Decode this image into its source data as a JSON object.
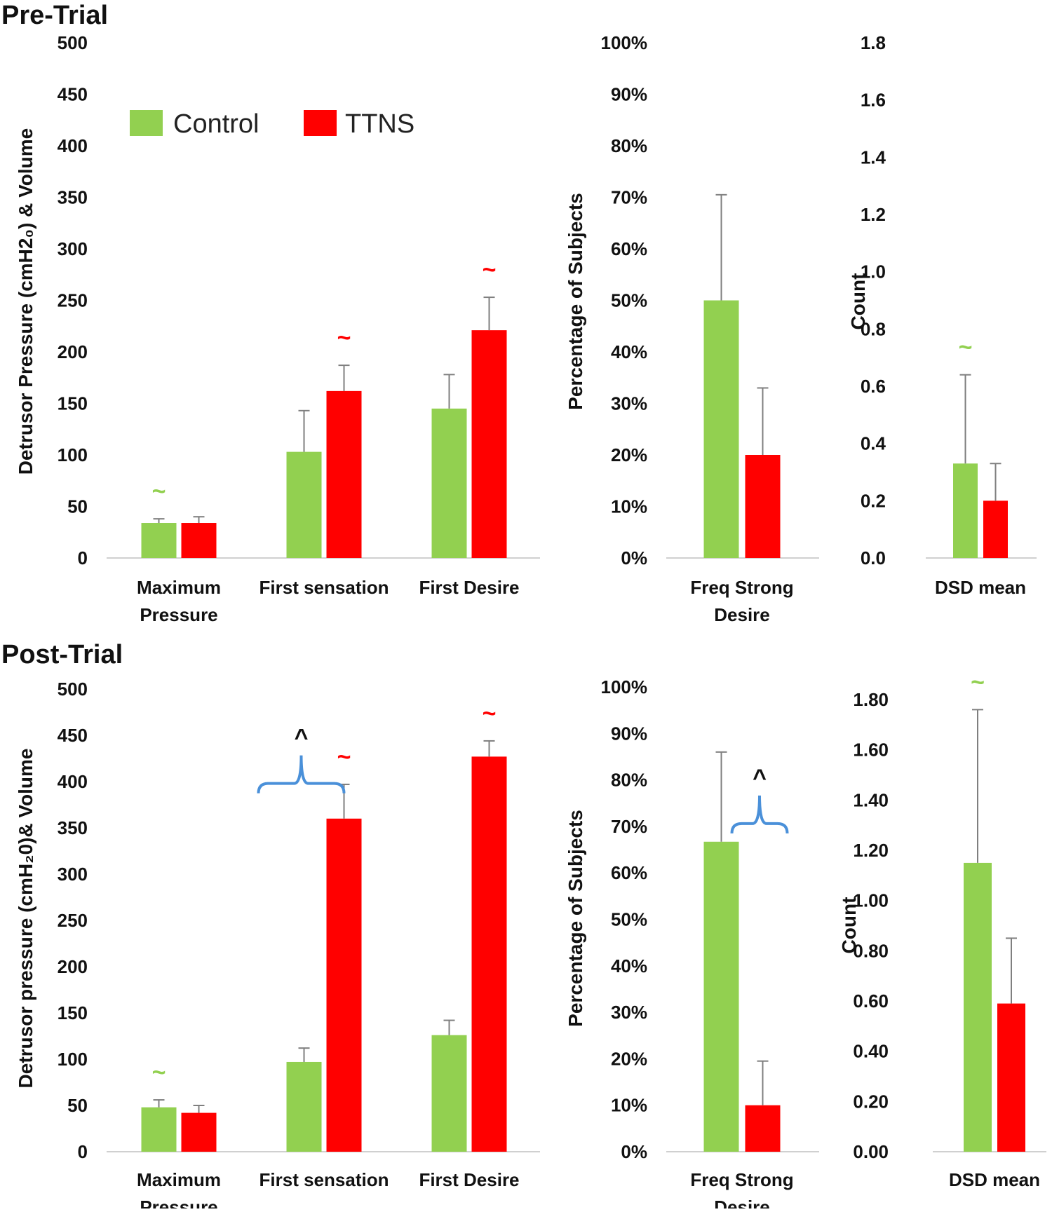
{
  "figure": {
    "panels": [
      {
        "title": "Pre-Trial"
      },
      {
        "title": "Post-Trial"
      }
    ],
    "legend": [
      {
        "label": "Control",
        "color": "#92d050"
      },
      {
        "label": "TTNS",
        "color": "#ff0000"
      }
    ],
    "colors": {
      "control": "#92d050",
      "ttns": "#ff0000",
      "bracket": "#4a90d9",
      "error": "#7f7f7f",
      "axis": "#d0d0d0"
    },
    "symbols": {
      "tilde": "~",
      "caret": "^"
    }
  },
  "chart_data": [
    {
      "id": "pre-main",
      "type": "bar",
      "panel": "Pre-Trial",
      "ylabel": "Detrusor Pressure (cmH2₀) & Volume",
      "ylim": [
        0,
        500
      ],
      "yticks": [
        0,
        50,
        100,
        150,
        200,
        250,
        300,
        350,
        400,
        450,
        500
      ],
      "ytick_labels": [
        "0",
        "50",
        "100",
        "150",
        "200",
        "250",
        "300",
        "350",
        "400",
        "450",
        "500"
      ],
      "categories": [
        [
          "Maximum",
          "Pressure"
        ],
        [
          "First sensation"
        ],
        [
          "First Desire"
        ]
      ],
      "series": [
        {
          "name": "Control",
          "values": [
            34,
            103,
            145
          ],
          "errors": [
            4,
            40,
            33
          ]
        },
        {
          "name": "TTNS",
          "values": [
            34,
            162,
            221
          ],
          "errors": [
            6,
            25,
            32
          ]
        }
      ],
      "annotations": [
        {
          "symbol": "~",
          "category": 0,
          "series": "Control"
        },
        {
          "symbol": "~",
          "category": 1,
          "series": "TTNS"
        },
        {
          "symbol": "~",
          "category": 2,
          "series": "TTNS"
        }
      ]
    },
    {
      "id": "pre-freq",
      "type": "bar",
      "panel": "Pre-Trial",
      "ylabel": "Percentage of Subjects",
      "ylim": [
        0,
        100
      ],
      "yticks": [
        0,
        10,
        20,
        30,
        40,
        50,
        60,
        70,
        80,
        90,
        100
      ],
      "ytick_labels": [
        "0%",
        "10%",
        "20%",
        "30%",
        "40%",
        "50%",
        "60%",
        "70%",
        "80%",
        "90%",
        "100%"
      ],
      "categories": [
        [
          "Freq Strong",
          "Desire"
        ]
      ],
      "series": [
        {
          "name": "Control",
          "values": [
            50
          ],
          "errors": [
            20.5
          ]
        },
        {
          "name": "TTNS",
          "values": [
            20
          ],
          "errors": [
            13
          ]
        }
      ],
      "annotations": []
    },
    {
      "id": "pre-dsd",
      "type": "bar",
      "panel": "Pre-Trial",
      "ylabel": "Count",
      "ylim": [
        0,
        1.8
      ],
      "yticks": [
        0,
        0.2,
        0.4,
        0.6,
        0.8,
        1.0,
        1.2,
        1.4,
        1.6,
        1.8
      ],
      "ytick_labels": [
        "0.0",
        "0.2",
        "0.4",
        "0.6",
        "0.8",
        "1.0",
        "1.2",
        "1.4",
        "1.6",
        "1.8"
      ],
      "categories": [
        [
          "DSD mean"
        ]
      ],
      "series": [
        {
          "name": "Control",
          "values": [
            0.33
          ],
          "errors": [
            0.31
          ]
        },
        {
          "name": "TTNS",
          "values": [
            0.2
          ],
          "errors": [
            0.13
          ]
        }
      ],
      "annotations": [
        {
          "symbol": "~",
          "category": 0,
          "series": "Control"
        }
      ]
    },
    {
      "id": "post-main",
      "type": "bar",
      "panel": "Post-Trial",
      "ylabel": "Detrusor pressure (cmH₂0)& Volume",
      "ylim": [
        0,
        500
      ],
      "yticks": [
        0,
        50,
        100,
        150,
        200,
        250,
        300,
        350,
        400,
        450,
        500
      ],
      "ytick_labels": [
        "0",
        "50",
        "100",
        "150",
        "200",
        "250",
        "300",
        "350",
        "400",
        "450",
        "500"
      ],
      "categories": [
        [
          "Maximum",
          "Pressure"
        ],
        [
          "First sensation"
        ],
        [
          "First Desire"
        ]
      ],
      "series": [
        {
          "name": "Control",
          "values": [
            48,
            97,
            126
          ],
          "errors": [
            8,
            15,
            16
          ]
        },
        {
          "name": "TTNS",
          "values": [
            42,
            360,
            427
          ],
          "errors": [
            8,
            37,
            17
          ]
        }
      ],
      "annotations": [
        {
          "symbol": "~",
          "category": 0,
          "series": "Control"
        },
        {
          "symbol": "~",
          "category": 1,
          "series": "TTNS"
        },
        {
          "symbol": "~",
          "category": 2,
          "series": "TTNS"
        },
        {
          "symbol": "^",
          "category": 1,
          "series": "between"
        }
      ]
    },
    {
      "id": "post-freq",
      "type": "bar",
      "panel": "Post-Trial",
      "ylabel": "Percentage of Subjects",
      "ylim": [
        0,
        100
      ],
      "yticks": [
        0,
        10,
        20,
        30,
        40,
        50,
        60,
        70,
        80,
        90,
        100
      ],
      "ytick_labels": [
        "0%",
        "10%",
        "20%",
        "30%",
        "40%",
        "50%",
        "60%",
        "70%",
        "80%",
        "90%",
        "100%"
      ],
      "categories": [
        [
          "Freq Strong",
          "Desire"
        ]
      ],
      "series": [
        {
          "name": "Control",
          "values": [
            66.7
          ],
          "errors": [
            19.3
          ]
        },
        {
          "name": "TTNS",
          "values": [
            10
          ],
          "errors": [
            9.5
          ]
        }
      ],
      "annotations": [
        {
          "symbol": "^",
          "category": 0,
          "series": "between"
        }
      ]
    },
    {
      "id": "post-dsd",
      "type": "bar",
      "panel": "Post-Trial",
      "ylabel": "Count",
      "ylim": [
        0,
        2.0
      ],
      "yticks": [
        0,
        0.2,
        0.4,
        0.6,
        0.8,
        1.0,
        1.2,
        1.4,
        1.6,
        1.8
      ],
      "ytick_labels": [
        "0.00",
        "0.20",
        "0.40",
        "0.60",
        "0.80",
        "1.00",
        "1.20",
        "1.40",
        "1.60",
        "1.80"
      ],
      "categories": [
        [
          "DSD mean"
        ]
      ],
      "series": [
        {
          "name": "Control",
          "values": [
            1.15
          ],
          "errors": [
            0.61
          ]
        },
        {
          "name": "TTNS",
          "values": [
            0.59
          ],
          "errors": [
            0.26
          ]
        }
      ],
      "annotations": [
        {
          "symbol": "~",
          "category": 0,
          "series": "Control"
        }
      ]
    }
  ]
}
